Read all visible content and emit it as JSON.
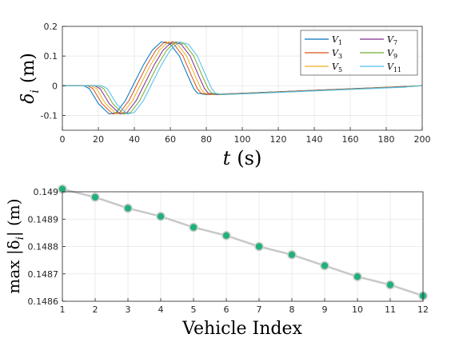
{
  "chart_data": [
    {
      "type": "line",
      "xlabel": "t (s)",
      "ylabel": "δ_i (m)",
      "xlim": [
        0,
        200
      ],
      "ylim": [
        -0.15,
        0.2
      ],
      "xticks": [
        "0",
        "20",
        "40",
        "60",
        "80",
        "100",
        "120",
        "140",
        "160",
        "180",
        "200"
      ],
      "yticks": [
        "-0.1",
        "0",
        "0.1",
        "0.2"
      ],
      "ytick_values": [
        -0.1,
        0,
        0.1,
        0.2
      ],
      "grid": true,
      "legend_position": "top-right",
      "series": [
        {
          "name": "V1",
          "color": "#0072BD",
          "shift": 0
        },
        {
          "name": "V3",
          "color": "#D95319",
          "shift": 2
        },
        {
          "name": "V5",
          "color": "#EDB120",
          "shift": 4
        },
        {
          "name": "V7",
          "color": "#7E2F8E",
          "shift": 6
        },
        {
          "name": "V9",
          "color": "#77AC30",
          "shift": 8
        },
        {
          "name": "V11",
          "color": "#4DBEEE",
          "shift": 10
        }
      ],
      "base_curve": {
        "x": [
          0,
          12,
          15,
          20,
          26,
          30,
          35,
          40,
          45,
          50,
          55,
          60,
          65,
          70,
          73,
          75,
          80,
          100,
          120,
          140,
          160,
          180,
          200
        ],
        "y": [
          0,
          0,
          -0.01,
          -0.06,
          -0.095,
          -0.09,
          -0.05,
          0.01,
          0.07,
          0.12,
          0.148,
          0.14,
          0.1,
          0.03,
          -0.01,
          -0.025,
          -0.03,
          -0.025,
          -0.02,
          -0.015,
          -0.01,
          -0.005,
          0
        ]
      }
    },
    {
      "type": "line",
      "xlabel": "Vehicle Index",
      "ylabel": "max |δ_i| (m)",
      "categories": [
        1,
        2,
        3,
        4,
        5,
        6,
        7,
        8,
        9,
        10,
        11,
        12
      ],
      "xticks": [
        "1",
        "2",
        "3",
        "4",
        "5",
        "6",
        "7",
        "8",
        "9",
        "10",
        "11",
        "12"
      ],
      "yticks": [
        "0.1486",
        "0.1487",
        "0.1488",
        "0.1489",
        "0.149"
      ],
      "ytick_values": [
        0.1486,
        0.1487,
        0.1488,
        0.1489,
        0.149
      ],
      "ylim": [
        0.1486,
        0.149
      ],
      "grid": true,
      "line_color": "#c8c8c8",
      "marker_color": "#22b07a",
      "values": [
        0.14901,
        0.14898,
        0.14894,
        0.14891,
        0.14887,
        0.14884,
        0.1488,
        0.14877,
        0.14873,
        0.14869,
        0.14866,
        0.14862
      ]
    }
  ],
  "legend_labels": {
    "V1": {
      "base": "V",
      "sub": "1"
    },
    "V3": {
      "base": "V",
      "sub": "3"
    },
    "V5": {
      "base": "V",
      "sub": "5"
    },
    "V7": {
      "base": "V",
      "sub": "7"
    },
    "V9": {
      "base": "V",
      "sub": "9"
    },
    "V11": {
      "base": "V",
      "sub": "11"
    }
  },
  "axis_label_parts": {
    "top_x_var": "t",
    "top_x_unit": "(s)",
    "top_y_var": "δ",
    "top_y_sub": "i",
    "top_y_unit": "(m)",
    "bottom_x": "Vehicle Index",
    "bottom_y_pre": "max |δ",
    "bottom_y_sub": "i",
    "bottom_y_post": "| (m)"
  }
}
